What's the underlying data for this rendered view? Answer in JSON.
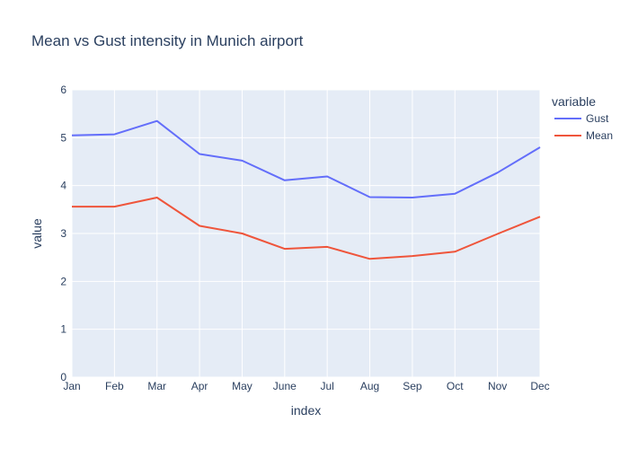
{
  "chart_data": {
    "type": "line",
    "title": "Mean vs Gust intensity in Munich airport",
    "xlabel": "index",
    "ylabel": "value",
    "ylim": [
      0,
      6
    ],
    "yticks": [
      "0",
      "1",
      "2",
      "3",
      "4",
      "5",
      "6"
    ],
    "categories": [
      "Jan",
      "Feb",
      "Mar",
      "Apr",
      "May",
      "June",
      "Jul",
      "Aug",
      "Sep",
      "Oct",
      "Nov",
      "Dec"
    ],
    "legend_title": "variable",
    "legend_position": "top-right",
    "grid": true,
    "series": [
      {
        "name": "Gust",
        "color": "#636efa",
        "values": [
          5.05,
          5.07,
          5.35,
          4.66,
          4.52,
          4.11,
          4.19,
          3.76,
          3.75,
          3.83,
          4.27,
          4.8
        ]
      },
      {
        "name": "Mean",
        "color": "#ef553b",
        "values": [
          3.56,
          3.56,
          3.75,
          3.16,
          3.0,
          2.68,
          2.72,
          2.47,
          2.53,
          2.62,
          2.99,
          3.35
        ]
      }
    ]
  }
}
